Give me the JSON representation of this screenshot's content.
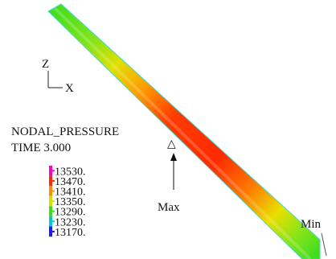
{
  "triad": {
    "z": "Z",
    "x": "X"
  },
  "title": "NODAL_PRESSURE",
  "time": "TIME 3.000",
  "legend": [
    {
      "label": "13530.",
      "color": "#ff00cc"
    },
    {
      "label": "13470.",
      "color": "#ff2a00"
    },
    {
      "label": "13410.",
      "color": "#ff8c00"
    },
    {
      "label": "13350.",
      "color": "#d8e000"
    },
    {
      "label": "13290.",
      "color": "#3fdc20"
    },
    {
      "label": "13230.",
      "color": "#00c8e0"
    },
    {
      "label": "13170.",
      "color": "#1a1aff"
    }
  ],
  "max_label": "Max",
  "min_label": "Min"
}
